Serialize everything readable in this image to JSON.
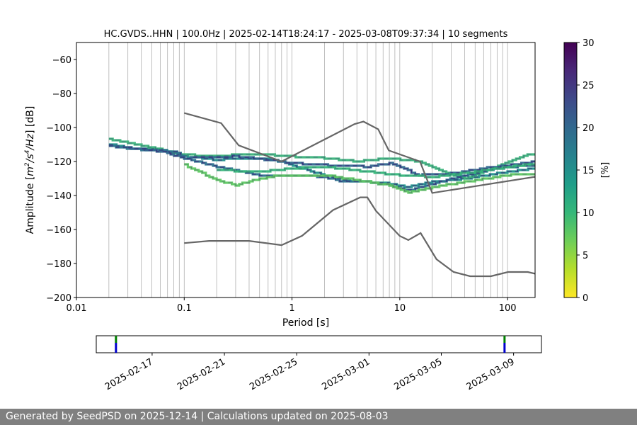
{
  "chart_data": [
    {
      "type": "heatmap",
      "kind": "probabilistic-power-spectral-density",
      "title": "HC.GVDS..HHN | 100.0Hz | 2025-02-14T18:24:17 - 2025-03-08T09:37:34 | 10 segments",
      "xlabel": "Period [s]",
      "ylabel_prefix": "Amplitude [",
      "ylabel_unit_base": "m",
      "ylabel_sup1": "2",
      "ylabel_mid": "/s",
      "ylabel_sup2": "4",
      "ylabel_tail": "/Hz",
      "ylabel_suffix": "] [dB]",
      "xscale": "log",
      "xlim": [
        0.01,
        180
      ],
      "ylim": [
        -200,
        -50
      ],
      "x_ticks": [
        0.01,
        0.1,
        1,
        10,
        100
      ],
      "x_tick_labels": [
        "0.01",
        "0.1",
        "1",
        "10",
        "100"
      ],
      "y_ticks": [
        -200,
        -180,
        -160,
        -140,
        -120,
        -100,
        -80,
        -60
      ],
      "y_tick_labels": [
        "−200",
        "−180",
        "−160",
        "−140",
        "−120",
        "−100",
        "−80",
        "−60"
      ],
      "grid": true,
      "noise_models": [
        {
          "name": "NHNM",
          "color": "#666666",
          "points": [
            [
              0.1,
              -91.5
            ],
            [
              0.22,
              -97.4
            ],
            [
              0.32,
              -110.5
            ],
            [
              0.8,
              -120
            ],
            [
              3.8,
              -98
            ],
            [
              4.6,
              -96.5
            ],
            [
              6.3,
              -101
            ],
            [
              7.9,
              -113.5
            ],
            [
              15.4,
              -120
            ],
            [
              20,
              -138.5
            ],
            [
              180,
              -129
            ]
          ]
        },
        {
          "name": "NLNM",
          "color": "#666666",
          "points": [
            [
              0.1,
              -168
            ],
            [
              0.17,
              -166.7
            ],
            [
              0.4,
              -166.7
            ],
            [
              0.8,
              -169.2
            ],
            [
              1.24,
              -163.7
            ],
            [
              2.4,
              -148.6
            ],
            [
              4.3,
              -141.1
            ],
            [
              5.0,
              -141.1
            ],
            [
              6.0,
              -149
            ],
            [
              10,
              -163.8
            ],
            [
              12,
              -166.2
            ],
            [
              15.6,
              -162.1
            ],
            [
              21.9,
              -177.5
            ],
            [
              31.6,
              -185
            ],
            [
              45,
              -187.5
            ],
            [
              70,
              -187.5
            ],
            [
              101,
              -185
            ],
            [
              154,
              -185
            ],
            [
              180,
              -186
            ]
          ]
        }
      ],
      "psd_bands": [
        {
          "name": "band-a",
          "color": "#21918c",
          "points": [
            [
              0.02,
              -110
            ],
            [
              0.03,
              -112
            ],
            [
              0.06,
              -113
            ],
            [
              0.1,
              -117
            ],
            [
              0.2,
              -119
            ],
            [
              0.3,
              -118
            ],
            [
              0.5,
              -118
            ],
            [
              0.8,
              -120
            ],
            [
              1.2,
              -124
            ],
            [
              2,
              -128
            ],
            [
              3,
              -131
            ],
            [
              5,
              -132
            ],
            [
              8,
              -133
            ],
            [
              12,
              -135
            ],
            [
              20,
              -132
            ],
            [
              40,
              -130
            ],
            [
              80,
              -127
            ],
            [
              180,
              -124
            ]
          ]
        },
        {
          "name": "band-b",
          "color": "#3ab37a",
          "points": [
            [
              0.02,
              -107
            ],
            [
              0.03,
              -109
            ],
            [
              0.05,
              -112
            ],
            [
              0.1,
              -116
            ],
            [
              0.2,
              -117
            ],
            [
              0.3,
              -116
            ],
            [
              0.6,
              -116
            ],
            [
              1,
              -117
            ],
            [
              2,
              -118
            ],
            [
              4,
              -120
            ],
            [
              8,
              -118
            ],
            [
              15,
              -120
            ],
            [
              25,
              -126
            ],
            [
              40,
              -130
            ],
            [
              70,
              -124
            ],
            [
              120,
              -118
            ],
            [
              180,
              -115
            ]
          ]
        },
        {
          "name": "band-c",
          "color": "#2c728e",
          "points": [
            [
              0.02,
              -111
            ],
            [
              0.04,
              -113
            ],
            [
              0.08,
              -114
            ],
            [
              0.1,
              -118
            ],
            [
              0.2,
              -123
            ],
            [
              0.3,
              -125
            ],
            [
              0.5,
              -128
            ],
            [
              1,
              -128
            ],
            [
              2,
              -129
            ],
            [
              3,
              -132
            ],
            [
              5,
              -132
            ],
            [
              8,
              -134
            ],
            [
              12,
              -137
            ],
            [
              20,
              -133
            ],
            [
              40,
              -128
            ],
            [
              80,
              -124
            ],
            [
              180,
              -122
            ]
          ]
        },
        {
          "name": "band-d",
          "color": "#5ec962",
          "points": [
            [
              0.1,
              -122
            ],
            [
              0.2,
              -131
            ],
            [
              0.3,
              -134
            ],
            [
              0.5,
              -130
            ],
            [
              0.8,
              -128
            ],
            [
              2,
              -128
            ],
            [
              4,
              -131
            ],
            [
              8,
              -134
            ],
            [
              12,
              -138
            ],
            [
              20,
              -135
            ],
            [
              50,
              -131
            ],
            [
              100,
              -128
            ],
            [
              180,
              -127
            ]
          ]
        },
        {
          "name": "band-e",
          "color": "#31688e",
          "points": [
            [
              0.03,
              -112
            ],
            [
              0.06,
              -114
            ],
            [
              0.1,
              -118
            ],
            [
              0.3,
              -117
            ],
            [
              0.6,
              -119
            ],
            [
              1,
              -121
            ],
            [
              2,
              -122
            ],
            [
              5,
              -123
            ],
            [
              8,
              -121
            ],
            [
              15,
              -128
            ],
            [
              30,
              -127
            ],
            [
              60,
              -124
            ],
            [
              180,
              -120
            ]
          ]
        },
        {
          "name": "band-f",
          "color": "#35b779",
          "points": [
            [
              0.2,
              -125
            ],
            [
              0.5,
              -126
            ],
            [
              1,
              -124
            ],
            [
              2,
              -123
            ],
            [
              5,
              -126
            ],
            [
              10,
              -128
            ],
            [
              20,
              -129
            ],
            [
              50,
              -126
            ],
            [
              180,
              -121
            ]
          ]
        }
      ],
      "colorbar": {
        "label": "[%]",
        "min": 0,
        "max": 30,
        "ticks": [
          0,
          5,
          10,
          15,
          20,
          25,
          30
        ],
        "tick_labels": [
          "0",
          "5",
          "10",
          "15",
          "20",
          "25",
          "30"
        ],
        "colors": [
          "#fde725",
          "#b5de2b",
          "#6ece58",
          "#35b779",
          "#1f9e89",
          "#26828e",
          "#31688e",
          "#3e4989",
          "#482878",
          "#440154"
        ]
      }
    },
    {
      "type": "timeline",
      "kind": "data-availability",
      "start": "2025-02-14",
      "end": "2025-03-10",
      "tick_dates": [
        "2025-02-17",
        "2025-02-21",
        "2025-02-25",
        "2025-03-01",
        "2025-03-05",
        "2025-03-09"
      ],
      "tick_labels": [
        "2025-02-17",
        "2025-02-21",
        "2025-02-25",
        "2025-03-01",
        "2025-03-05",
        "2025-03-09"
      ],
      "range_start": "2025-02-13T21:50:00",
      "range_end": "2025-03-10T13:00:00",
      "segments": [
        {
          "time": "2025-02-15T00:00:00",
          "color_top": "#008000",
          "color_bottom": "#0000cc"
        },
        {
          "time": "2025-03-08T12:00:00",
          "color_top": "#008000",
          "color_bottom": "#0000cc"
        }
      ]
    }
  ],
  "footer": {
    "text": "Generated by SeedPSD on 2025-12-14 | Calculations updated on 2025-08-03"
  }
}
